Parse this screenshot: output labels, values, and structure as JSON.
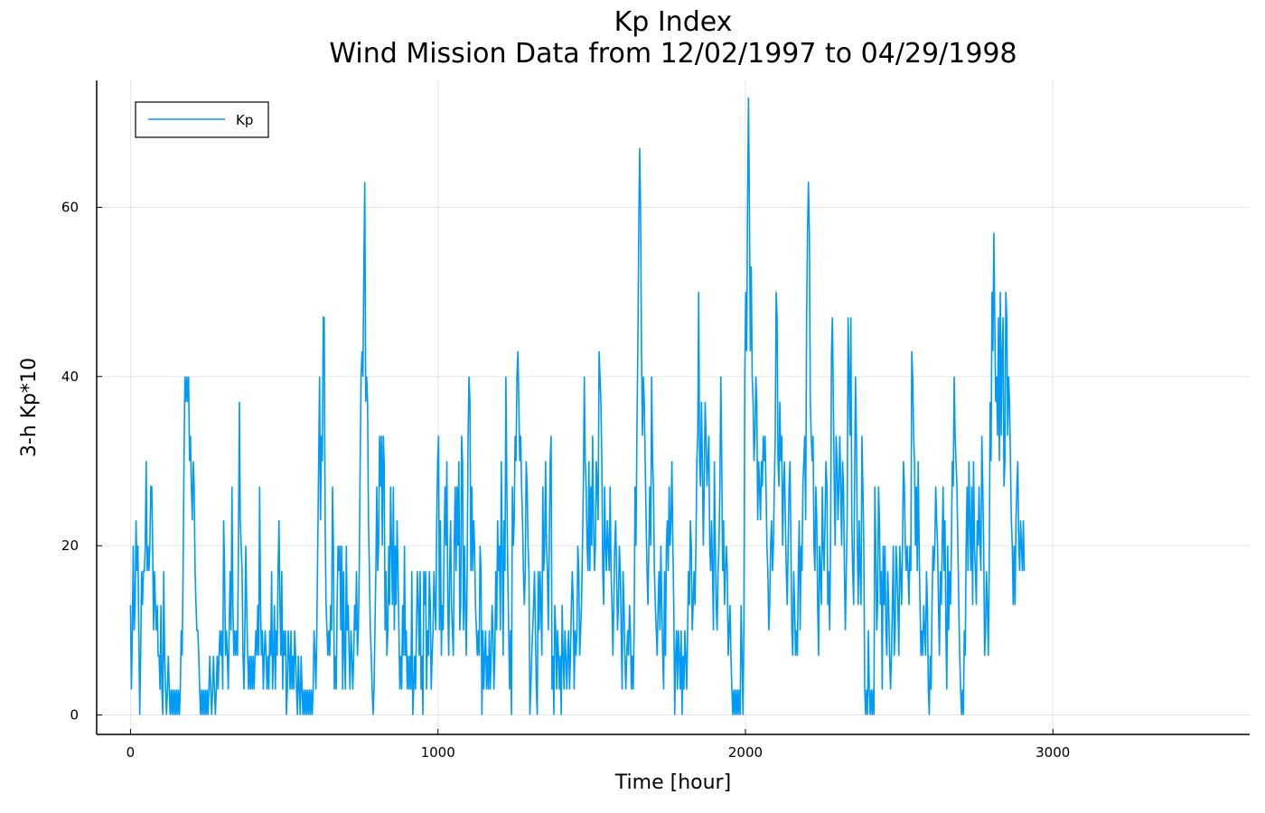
{
  "chart_data": {
    "type": "line",
    "title": "Kp Index",
    "subtitle": "Wind Mission Data from 12/02/1997 to 04/29/1998",
    "xlabel": "Time [hour]",
    "ylabel": "3-h Kp*10",
    "xlim": [
      -110,
      3640
    ],
    "ylim": [
      -2.3,
      75
    ],
    "xticks": [
      0,
      1000,
      2000,
      3000
    ],
    "xtick_labels": [
      "0",
      "1000",
      "2000",
      "3000"
    ],
    "yticks": [
      0,
      20,
      40,
      60
    ],
    "ytick_labels": [
      "0",
      "20",
      "40",
      "60"
    ],
    "grid": true,
    "legend": {
      "position": "top-left",
      "entries": [
        "Kp"
      ]
    },
    "series": [
      {
        "name": "Kp",
        "color": "#009af9",
        "step_hours": 3,
        "x_start": 0,
        "values": [
          13,
          3,
          10,
          20,
          10,
          13,
          23,
          17,
          20,
          10,
          0,
          7,
          17,
          13,
          17,
          17,
          20,
          30,
          17,
          20,
          17,
          20,
          27,
          27,
          20,
          10,
          17,
          13,
          10,
          13,
          7,
          7,
          3,
          13,
          3,
          0,
          17,
          7,
          3,
          0,
          3,
          7,
          3,
          0,
          3,
          0,
          3,
          0,
          3,
          0,
          3,
          0,
          3,
          0,
          3,
          10,
          7,
          17,
          30,
          40,
          37,
          40,
          37,
          40,
          30,
          33,
          27,
          23,
          30,
          27,
          17,
          13,
          10,
          10,
          7,
          3,
          0,
          3,
          0,
          3,
          0,
          3,
          0,
          3,
          0,
          3,
          7,
          3,
          0,
          3,
          7,
          3,
          0,
          3,
          7,
          3,
          7,
          10,
          7,
          10,
          3,
          23,
          17,
          7,
          10,
          7,
          3,
          10,
          17,
          10,
          27,
          13,
          7,
          10,
          7,
          10,
          7,
          20,
          37,
          23,
          20,
          17,
          7,
          3,
          10,
          20,
          13,
          7,
          3,
          7,
          3,
          7,
          3,
          7,
          3,
          7,
          10,
          7,
          13,
          7,
          27,
          13,
          7,
          10,
          3,
          7,
          10,
          7,
          3,
          7,
          3,
          10,
          7,
          17,
          3,
          7,
          13,
          3,
          10,
          7,
          17,
          23,
          13,
          7,
          17,
          3,
          10,
          7,
          10,
          0,
          3,
          10,
          7,
          3,
          10,
          3,
          7,
          3,
          10,
          7,
          3,
          0,
          7,
          3,
          0,
          7,
          3,
          0,
          3,
          0,
          3,
          0,
          3,
          0,
          3,
          0,
          3,
          0,
          3,
          10,
          7,
          3,
          10,
          20,
          30,
          40,
          23,
          33,
          30,
          47,
          47,
          23,
          13,
          10,
          7,
          10,
          7,
          13,
          10,
          27,
          20,
          3,
          7,
          3,
          13,
          20,
          17,
          20,
          10,
          20,
          3,
          17,
          7,
          3,
          20,
          10,
          13,
          7,
          3,
          10,
          7,
          3,
          7,
          13,
          10,
          17,
          7,
          10,
          17,
          30,
          40,
          43,
          40,
          53,
          63,
          37,
          40,
          37,
          23,
          17,
          10,
          7,
          3,
          0,
          3,
          10,
          17,
          27,
          17,
          20,
          33,
          27,
          33,
          20,
          33,
          30,
          10,
          17,
          7,
          10,
          20,
          13,
          27,
          20,
          13,
          27,
          10,
          20,
          13,
          23,
          17,
          10,
          3,
          7,
          3,
          13,
          7,
          20,
          7,
          10,
          3,
          7,
          3,
          7,
          3,
          17,
          0,
          3,
          7,
          3,
          10,
          17,
          13,
          7,
          17,
          3,
          7,
          0,
          17,
          13,
          17,
          3,
          10,
          7,
          17,
          13,
          3,
          7,
          10,
          17,
          13,
          10,
          23,
          30,
          33,
          10,
          23,
          7,
          13,
          10,
          20,
          27,
          20,
          30,
          13,
          7,
          17,
          23,
          13,
          10,
          7,
          20,
          27,
          17,
          27,
          20,
          30,
          10,
          13,
          33,
          30,
          10,
          20,
          13,
          7,
          17,
          33,
          40,
          37,
          17,
          27,
          17,
          23,
          20,
          13,
          10,
          7,
          10,
          7,
          20,
          17,
          0,
          10,
          3,
          7,
          10,
          3,
          7,
          3,
          10,
          3,
          7,
          13,
          10,
          3,
          7,
          17,
          10,
          23,
          17,
          20,
          10,
          30,
          20,
          7,
          23,
          17,
          40,
          27,
          17,
          10,
          3,
          10,
          0,
          27,
          20,
          23,
          33,
          30,
          40,
          43,
          37,
          30,
          33,
          27,
          23,
          17,
          13,
          17,
          30,
          27,
          20,
          17,
          0,
          3,
          7,
          10,
          13,
          17,
          10,
          3,
          0,
          17,
          10,
          17,
          13,
          7,
          27,
          17,
          20,
          30,
          20,
          17,
          10,
          20,
          30,
          33,
          3,
          7,
          0,
          13,
          10,
          3,
          10,
          7,
          3,
          7,
          0,
          13,
          7,
          3,
          10,
          7,
          3,
          7,
          10,
          3,
          7,
          13,
          17,
          13,
          3,
          10,
          7,
          10,
          20,
          17,
          7,
          10,
          13,
          20,
          27,
          40,
          30,
          27,
          20,
          17,
          30,
          17,
          27,
          20,
          33,
          23,
          17,
          20,
          30,
          27,
          23,
          43,
          40,
          37,
          30,
          17,
          13,
          27,
          20,
          17,
          23,
          20,
          17,
          27,
          17,
          13,
          7,
          13,
          20,
          23,
          17,
          10,
          13,
          20,
          17,
          10,
          3,
          17,
          13,
          7,
          3,
          7,
          10,
          7,
          13,
          10,
          3,
          7,
          3,
          10,
          27,
          20,
          33,
          43,
          57,
          67,
          60,
          43,
          33,
          40,
          37,
          30,
          23,
          17,
          13,
          20,
          27,
          20,
          40,
          30,
          27,
          17,
          13,
          10,
          7,
          13,
          17,
          10,
          20,
          13,
          7,
          3,
          17,
          7,
          20,
          23,
          17,
          27,
          20,
          23,
          30,
          20,
          13,
          0,
          7,
          10,
          3,
          10,
          7,
          3,
          10,
          0,
          7,
          3,
          10,
          7,
          3,
          10,
          17,
          13,
          23,
          20,
          10,
          13,
          17,
          13,
          20,
          30,
          33,
          50,
          30,
          27,
          37,
          30,
          20,
          27,
          37,
          33,
          27,
          30,
          33,
          20,
          17,
          23,
          17,
          10,
          30,
          20,
          13,
          10,
          17,
          20,
          27,
          40,
          30,
          17,
          23,
          13,
          17,
          20,
          17,
          7,
          10,
          13,
          7,
          3,
          0,
          3,
          0,
          3,
          0,
          3,
          0,
          3,
          0,
          13,
          7,
          0,
          10,
          40,
          50,
          43,
          60,
          73,
          60,
          43,
          53,
          40,
          37,
          30,
          33,
          40,
          37,
          23,
          30,
          27,
          23,
          30,
          27,
          33,
          30,
          33,
          27,
          20,
          17,
          10,
          13,
          20,
          23,
          17,
          20,
          27,
          33,
          50,
          47,
          30,
          27,
          37,
          30,
          33,
          20,
          27,
          30,
          23,
          17,
          13,
          20,
          27,
          30,
          20,
          10,
          7,
          17,
          13,
          7,
          10,
          7,
          17,
          23,
          10,
          20,
          17,
          27,
          30,
          33,
          23,
          47,
          57,
          63,
          57,
          37,
          33,
          30,
          33,
          20,
          17,
          27,
          23,
          13,
          7,
          20,
          17,
          13,
          27,
          20,
          17,
          23,
          30,
          27,
          13,
          17,
          10,
          20,
          43,
          47,
          37,
          27,
          20,
          33,
          30,
          23,
          27,
          33,
          27,
          20,
          30,
          27,
          17,
          10,
          17,
          23,
          47,
          40,
          33,
          47,
          23,
          17,
          13,
          27,
          40,
          33,
          20,
          13,
          23,
          17,
          13,
          33,
          27,
          20,
          3,
          0,
          3,
          0,
          10,
          3,
          0,
          3,
          0,
          3,
          0,
          27,
          20,
          10,
          13,
          27,
          23,
          13,
          17,
          3,
          20,
          13,
          20,
          10,
          7,
          17,
          13,
          7,
          3,
          7,
          13,
          20,
          7,
          10,
          20,
          17,
          13,
          7,
          20,
          17,
          13,
          20,
          30,
          27,
          20,
          17,
          20,
          17,
          13,
          20,
          17,
          43,
          40,
          33,
          30,
          20,
          27,
          17,
          30,
          20,
          13,
          7,
          10,
          7,
          13,
          10,
          7,
          17,
          13,
          3,
          0,
          7,
          3,
          13,
          20,
          17,
          20,
          27,
          23,
          20,
          13,
          7,
          17,
          13,
          20,
          27,
          17,
          23,
          10,
          3,
          20,
          10,
          17,
          13,
          20,
          30,
          27,
          40,
          33,
          30,
          27,
          20,
          13,
          7,
          3,
          0,
          3,
          0,
          10,
          7,
          20,
          27,
          17,
          30,
          23,
          17,
          27,
          13,
          30,
          20,
          17,
          13,
          23,
          20,
          27,
          20,
          17,
          33,
          27,
          20,
          7,
          10,
          17,
          13,
          7,
          17,
          37,
          30,
          50,
          43,
          57,
          47,
          37,
          40,
          33,
          47,
          30,
          50,
          33,
          43,
          47,
          27,
          30,
          50,
          47,
          33,
          40,
          37,
          30,
          23,
          20,
          13,
          20,
          13,
          23,
          27,
          30,
          20,
          17,
          23,
          20,
          17,
          23,
          17
        ]
      }
    ]
  }
}
